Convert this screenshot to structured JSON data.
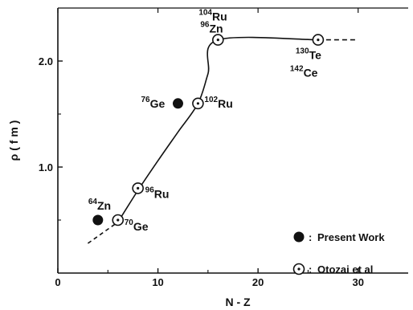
{
  "chart_data": {
    "type": "scatter",
    "xlabel": "N - Z",
    "ylabel": "ρ ( f m )",
    "xlim": [
      0,
      35
    ],
    "ylim": [
      0,
      2.5
    ],
    "x_ticks": [
      0,
      10,
      20,
      30
    ],
    "x_tick_labels": [
      "0",
      "10",
      "20",
      "30"
    ],
    "y_ticks": [
      1.0,
      2.0
    ],
    "y_tick_labels": [
      "1.0",
      "2.0"
    ],
    "grid": false,
    "legend_position": "right",
    "series": [
      {
        "name": "Present Work",
        "marker": "filled-circle",
        "points": [
          {
            "x": 4,
            "y": 0.5,
            "mass": "64",
            "element": "Zn"
          },
          {
            "x": 12,
            "y": 1.6,
            "mass": "76",
            "element": "Ge"
          }
        ]
      },
      {
        "name": "Otozai et al",
        "marker": "open-circle-dot",
        "points": [
          {
            "x": 6,
            "y": 0.5,
            "mass": "70",
            "element": "Ge"
          },
          {
            "x": 8,
            "y": 0.8,
            "mass": "96",
            "element": "Ru"
          },
          {
            "x": 14,
            "y": 1.6,
            "mass": "102",
            "element": "Ru"
          },
          {
            "x": 16,
            "y": 2.2,
            "mass": "104",
            "element": "Ru",
            "mass2": "96",
            "element2": "Zn"
          },
          {
            "x": 26,
            "y": 2.2,
            "mass": "130",
            "element": "Te",
            "mass2": "142",
            "element2": "Ce"
          }
        ]
      }
    ],
    "curve": {
      "dashed_start": [
        [
          3,
          0.28
        ],
        [
          6,
          0.48
        ]
      ],
      "solid": [
        [
          6,
          0.48
        ],
        [
          8,
          0.78
        ],
        [
          10,
          1.06
        ],
        [
          12,
          1.33
        ],
        [
          14,
          1.6
        ],
        [
          15,
          1.88
        ],
        [
          16,
          2.2
        ],
        [
          26,
          2.2
        ]
      ],
      "dashed_end": [
        [
          26,
          2.2
        ],
        [
          30,
          2.2
        ]
      ]
    },
    "legend": [
      {
        "label": "Present Work",
        "marker": "filled-circle"
      },
      {
        "label": "Otozai et al",
        "marker": "open-circle-dot"
      }
    ],
    "legend_separator": ":"
  }
}
